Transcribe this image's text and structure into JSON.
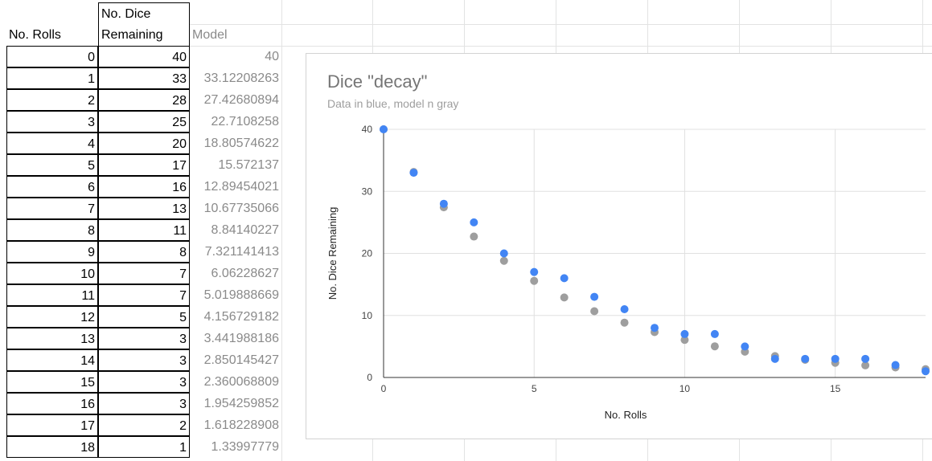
{
  "table": {
    "headers": {
      "rolls": "No. Rolls",
      "dice_line1": "No. Dice",
      "dice_line2": "Remaining",
      "model": "Model"
    },
    "rows": [
      {
        "rolls": "0",
        "dice": "40",
        "model": "40"
      },
      {
        "rolls": "1",
        "dice": "33",
        "model": "33.12208263"
      },
      {
        "rolls": "2",
        "dice": "28",
        "model": "27.42680894"
      },
      {
        "rolls": "3",
        "dice": "25",
        "model": "22.7108258"
      },
      {
        "rolls": "4",
        "dice": "20",
        "model": "18.80574622"
      },
      {
        "rolls": "5",
        "dice": "17",
        "model": "15.572137"
      },
      {
        "rolls": "6",
        "dice": "16",
        "model": "12.89454021"
      },
      {
        "rolls": "7",
        "dice": "13",
        "model": "10.67735066"
      },
      {
        "rolls": "8",
        "dice": "11",
        "model": "8.84140227"
      },
      {
        "rolls": "9",
        "dice": "8",
        "model": "7.321141413"
      },
      {
        "rolls": "10",
        "dice": "7",
        "model": "6.06228627"
      },
      {
        "rolls": "11",
        "dice": "7",
        "model": "5.019888669"
      },
      {
        "rolls": "12",
        "dice": "5",
        "model": "4.156729182"
      },
      {
        "rolls": "13",
        "dice": "3",
        "model": "3.441988186"
      },
      {
        "rolls": "14",
        "dice": "3",
        "model": "2.850145427"
      },
      {
        "rolls": "15",
        "dice": "3",
        "model": "2.360068809"
      },
      {
        "rolls": "16",
        "dice": "3",
        "model": "1.954259852"
      },
      {
        "rolls": "17",
        "dice": "2",
        "model": "1.618228908"
      },
      {
        "rolls": "18",
        "dice": "1",
        "model": "1.33997779"
      }
    ]
  },
  "chart_data": {
    "type": "scatter",
    "title": "Dice \"decay\"",
    "subtitle": "Data in blue, model n gray",
    "xlabel": "No. Rolls",
    "ylabel": "No. Dice Remaining",
    "xlim": [
      0,
      18
    ],
    "ylim": [
      0,
      40
    ],
    "xticks": [
      0,
      5,
      10,
      15
    ],
    "yticks": [
      0,
      10,
      20,
      30,
      40
    ],
    "grid": true,
    "series": [
      {
        "color": "#4285f4",
        "x": [
          0,
          1,
          2,
          3,
          4,
          5,
          6,
          7,
          8,
          9,
          10,
          11,
          12,
          13,
          14,
          15,
          16,
          17,
          18
        ],
        "y": [
          40,
          33,
          28,
          25,
          20,
          17,
          16,
          13,
          11,
          8,
          7,
          7,
          5,
          3,
          3,
          3,
          3,
          2,
          1
        ]
      },
      {
        "color": "#9e9e9e",
        "x": [
          0,
          1,
          2,
          3,
          4,
          5,
          6,
          7,
          8,
          9,
          10,
          11,
          12,
          13,
          14,
          15,
          16,
          17,
          18
        ],
        "y": [
          40,
          33.12208263,
          27.42680894,
          22.7108258,
          18.80574622,
          15.572137,
          12.89454021,
          10.67735066,
          8.84140227,
          7.321141413,
          6.06228627,
          5.019888669,
          4.156729182,
          3.441988186,
          2.850145427,
          2.360068809,
          1.954259852,
          1.618228908,
          1.33997779
        ]
      }
    ]
  }
}
